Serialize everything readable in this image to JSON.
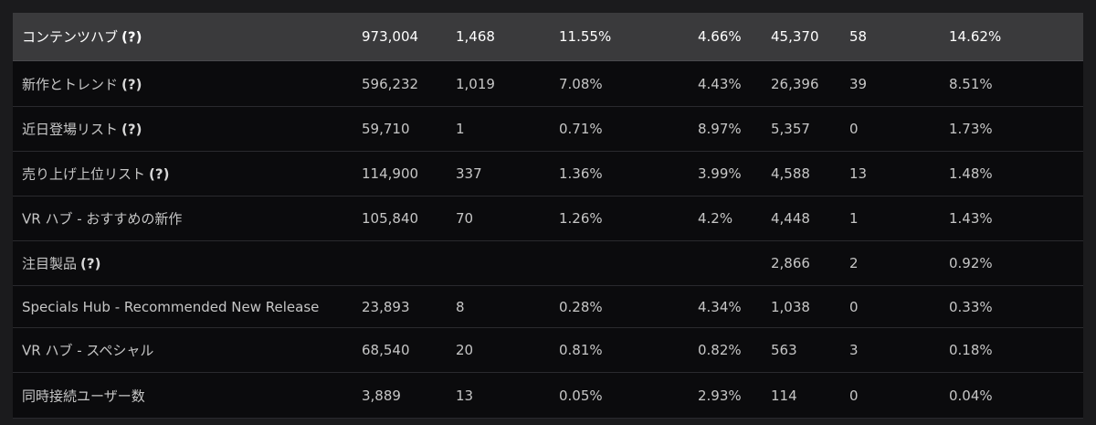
{
  "rows": [
    {
      "name": "コンテンツハブ",
      "help": "(?)",
      "c1": "973,004",
      "c2": "1,468",
      "c3": "11.55%",
      "c4": "4.66%",
      "c5": "45,370",
      "c6": "58",
      "c7": "14.62%"
    },
    {
      "name": "新作とトレンド",
      "help": "(?)",
      "c1": "596,232",
      "c2": "1,019",
      "c3": "7.08%",
      "c4": "4.43%",
      "c5": "26,396",
      "c6": "39",
      "c7": "8.51%"
    },
    {
      "name": "近日登場リスト",
      "help": "(?)",
      "c1": "59,710",
      "c2": "1",
      "c3": "0.71%",
      "c4": "8.97%",
      "c5": "5,357",
      "c6": "0",
      "c7": "1.73%"
    },
    {
      "name": "売り上げ上位リスト",
      "help": "(?)",
      "c1": "114,900",
      "c2": "337",
      "c3": "1.36%",
      "c4": "3.99%",
      "c5": "4,588",
      "c6": "13",
      "c7": "1.48%"
    },
    {
      "name": "VR ハブ - おすすめの新作",
      "help": "",
      "c1": "105,840",
      "c2": "70",
      "c3": "1.26%",
      "c4": "4.2%",
      "c5": "4,448",
      "c6": "1",
      "c7": "1.43%"
    },
    {
      "name": "注目製品",
      "help": "(?)",
      "c1": "",
      "c2": "",
      "c3": "",
      "c4": "",
      "c5": "2,866",
      "c6": "2",
      "c7": "0.92%"
    },
    {
      "name": "Specials Hub - Recommended New Release",
      "help": "",
      "c1": "23,893",
      "c2": "8",
      "c3": "0.28%",
      "c4": "4.34%",
      "c5": "1,038",
      "c6": "0",
      "c7": "0.33%"
    },
    {
      "name": "VR ハブ - スペシャル",
      "help": "",
      "c1": "68,540",
      "c2": "20",
      "c3": "0.81%",
      "c4": "0.82%",
      "c5": "563",
      "c6": "3",
      "c7": "0.18%"
    },
    {
      "name": "同時接続ユーザー数",
      "help": "",
      "c1": "3,889",
      "c2": "13",
      "c3": "0.05%",
      "c4": "2.93%",
      "c5": "114",
      "c6": "0",
      "c7": "0.04%"
    }
  ]
}
